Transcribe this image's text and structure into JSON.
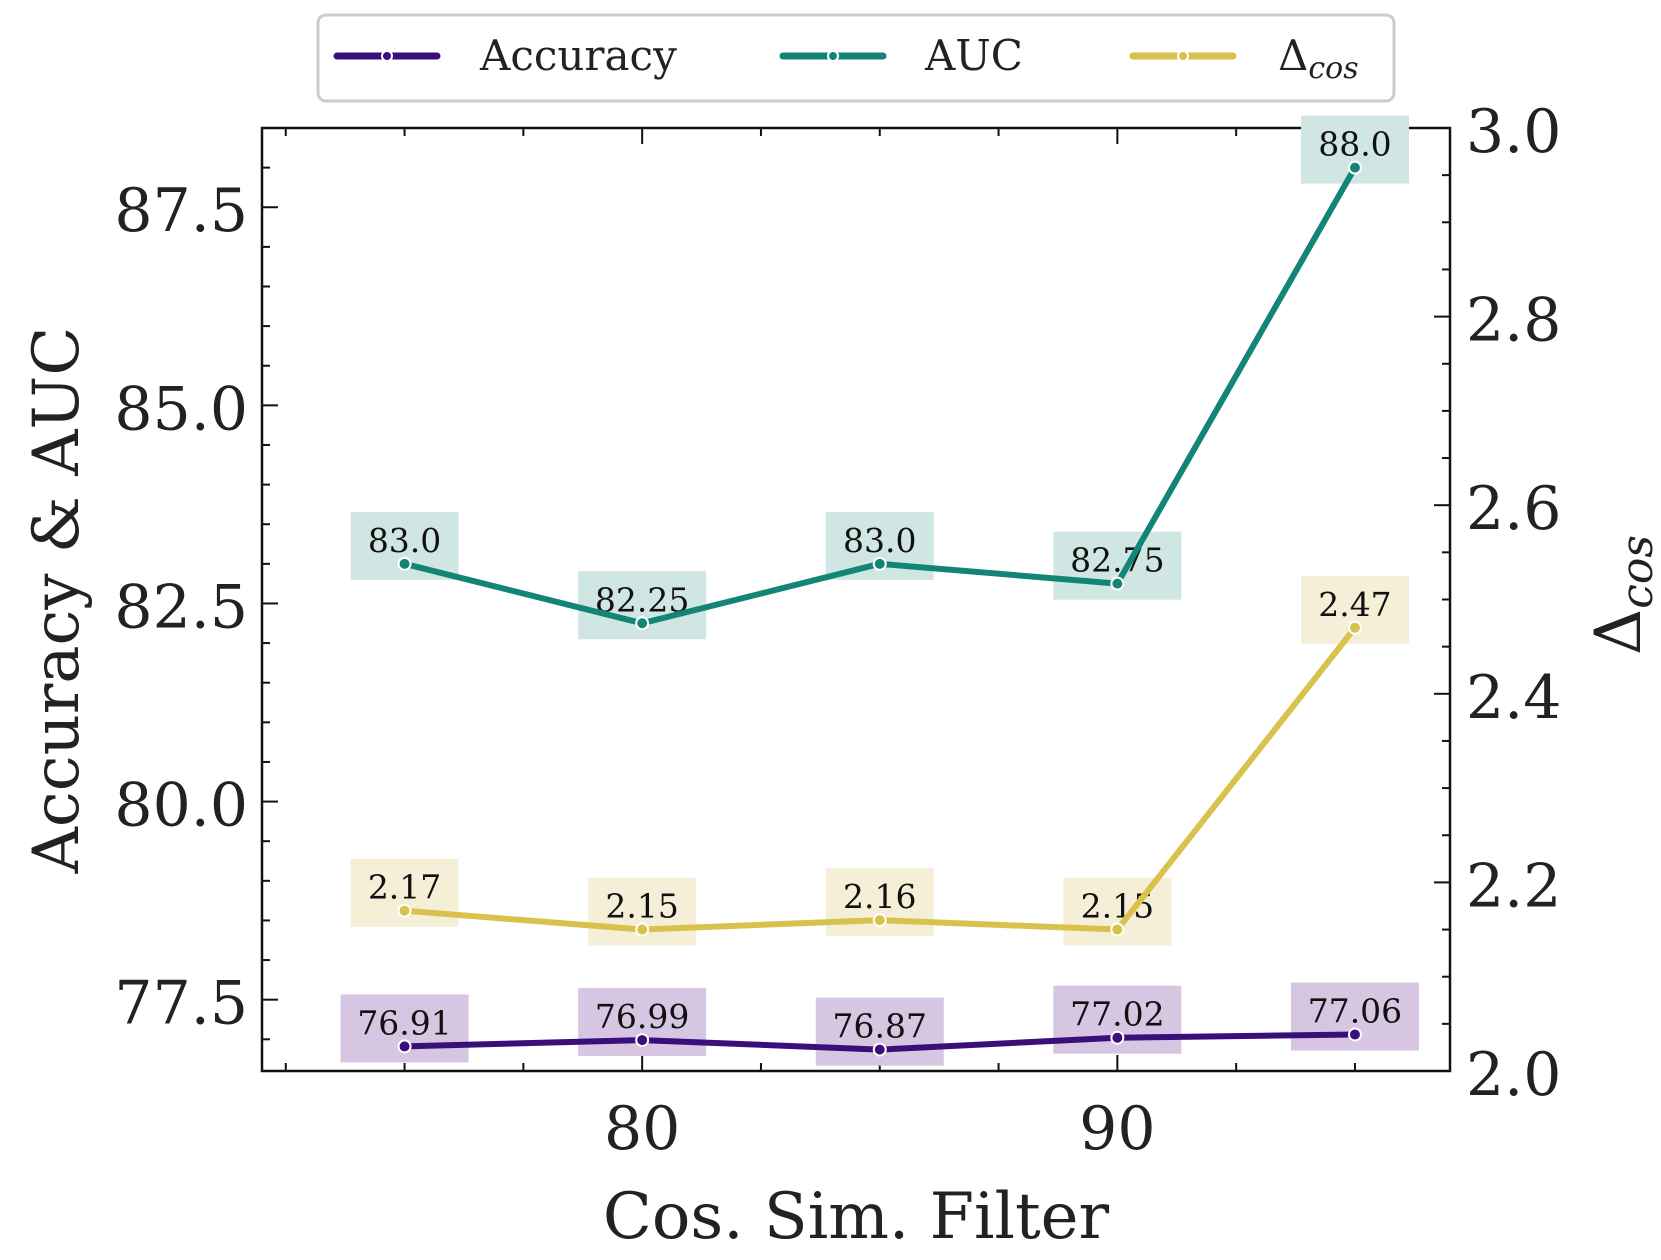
{
  "chart_data": {
    "type": "line",
    "x": [
      75,
      80,
      85,
      90,
      95
    ],
    "xlabel": "Cos. Sim. Filter",
    "ylabel": "Accuracy & AUC",
    "ylabel_right_base": "Δ",
    "ylabel_right_sub": "cos",
    "x_ticks": [
      "80",
      "90"
    ],
    "y_ticks": [
      "77.5",
      "80.0",
      "82.5",
      "85.0",
      "87.5"
    ],
    "y2_ticks": [
      "2.0",
      "2.2",
      "2.4",
      "2.6",
      "2.8",
      "3.0"
    ],
    "xlim": [
      72.0,
      97.0
    ],
    "ylim": [
      76.6,
      88.5
    ],
    "y2lim": [
      2.0,
      3.0
    ],
    "legend_position": "top-center",
    "series": [
      {
        "name": "Accuracy",
        "axis": "left",
        "color": "#3b0f7a",
        "label_bg": "#d6c6e1",
        "values": [
          76.91,
          76.99,
          76.87,
          77.02,
          77.06
        ],
        "labels": [
          "76.91",
          "76.99",
          "76.87",
          "77.02",
          "77.06"
        ]
      },
      {
        "name": "AUC",
        "axis": "left",
        "color": "#138577",
        "label_bg": "#cfe6e2",
        "values": [
          83.0,
          82.25,
          83.0,
          82.75,
          88.0
        ],
        "labels": [
          "83.0",
          "82.25",
          "83.0",
          "82.75",
          "88.0"
        ]
      },
      {
        "name_base": "Δ",
        "name_sub": "cos",
        "axis": "right",
        "color": "#d8c24c",
        "label_bg": "#f5efd8",
        "values": [
          2.17,
          2.15,
          2.16,
          2.15,
          2.47
        ],
        "labels": [
          "2.17",
          "2.15",
          "2.16",
          "2.15",
          "2.47"
        ]
      }
    ]
  }
}
